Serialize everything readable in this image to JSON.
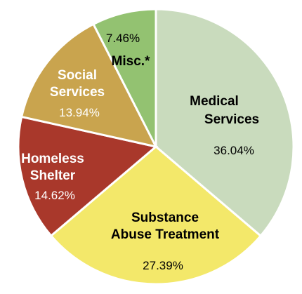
{
  "chart_data": {
    "type": "pie",
    "slices": [
      {
        "label": [
          "Medical",
          "Services"
        ],
        "value": 36.04,
        "value_label": "36.04%",
        "color": "#c9dbbd",
        "text_color": "#000000",
        "pct_color": "#000000"
      },
      {
        "label": [
          "Substance",
          "Abuse Treatment"
        ],
        "value": 27.39,
        "value_label": "27.39%",
        "color": "#f3e86a",
        "text_color": "#000000",
        "pct_color": "#000000"
      },
      {
        "label": [
          "Homeless",
          "Shelter"
        ],
        "value": 14.62,
        "value_label": "14.62%",
        "color": "#a9382b",
        "text_color": "#ffffff",
        "pct_color": "#ffffff"
      },
      {
        "label": [
          "Social",
          "Services"
        ],
        "value": 13.94,
        "value_label": "13.94%",
        "color": "#c9a44e",
        "text_color": "#ffffff",
        "pct_color": "#ffffff"
      },
      {
        "label": [
          "Misc.*"
        ],
        "value": 7.46,
        "value_label": "7.46%",
        "color": "#93c271",
        "text_color": "#000000",
        "pct_color": "#000000"
      }
    ],
    "start_angle_deg": 0,
    "direction": "clockwise"
  }
}
